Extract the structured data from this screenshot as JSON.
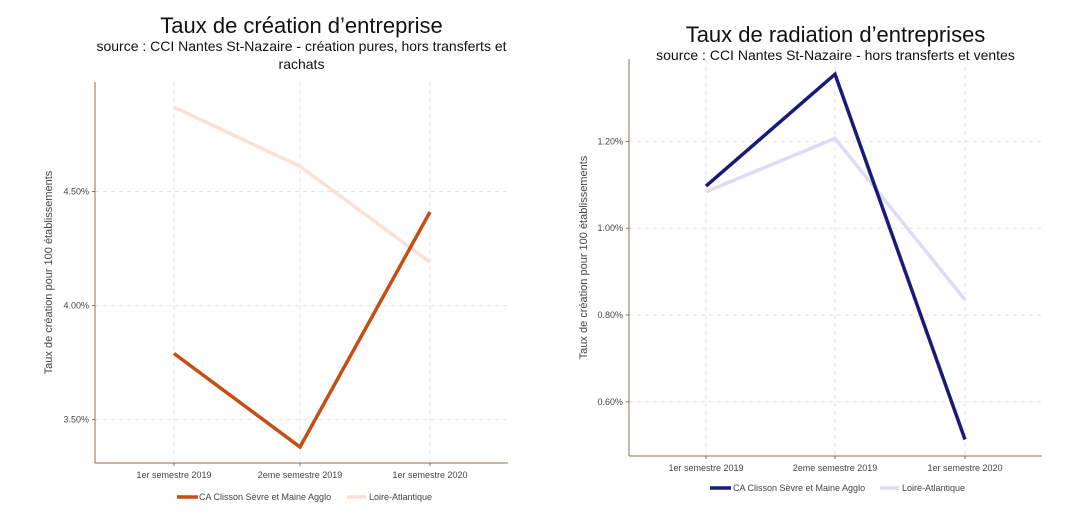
{
  "chart_data": [
    {
      "type": "line",
      "title": "Taux de création d’entreprise",
      "subtitle_lines": [
        "source : CCI Nantes St-Nazaire - création pures, hors transferts et",
        "rachats"
      ],
      "xlabel": "",
      "ylabel": "Taux de création pour 100 établissements",
      "categories": [
        "1er semestre 2019",
        "2eme semestre 2019",
        "1er semestre 2020"
      ],
      "yticks": [
        "3.50%",
        "4.00%",
        "4.50%"
      ],
      "ytick_values": [
        3.5,
        4.0,
        4.5
      ],
      "ylim": [
        3.31,
        4.98
      ],
      "grid": true,
      "legend_position": "bottom",
      "series": [
        {
          "name": "CA Clisson Sèvre et Maine Agglo",
          "values": [
            3.79,
            3.38,
            4.41
          ],
          "color": "#c44e14"
        },
        {
          "name": "Loire-Atlantique",
          "values": [
            4.87,
            4.61,
            4.19
          ],
          "color": "#fbe1d4"
        }
      ]
    },
    {
      "type": "line",
      "title": "Taux de radiation d’entreprises",
      "subtitle_lines": [
        "source : CCI Nantes St-Nazaire - hors transferts et ventes"
      ],
      "xlabel": "",
      "ylabel": "Taux de création pour 100 établissements",
      "categories": [
        "1er semestre 2019",
        "2eme semestre 2019",
        "1er semestre 2020"
      ],
      "yticks": [
        "0.60%",
        "0.80%",
        "1.00%",
        "1.20%"
      ],
      "ytick_values": [
        0.6,
        0.8,
        1.0,
        1.2
      ],
      "ylim": [
        0.475,
        1.39
      ],
      "grid": true,
      "legend_position": "bottom",
      "series": [
        {
          "name": "CA Clisson Sèvre et Maine Agglo",
          "values": [
            1.097,
            1.355,
            0.513
          ],
          "color": "#1a1a7a"
        },
        {
          "name": "Loire-Atlantique",
          "values": [
            1.084,
            1.207,
            0.835
          ],
          "color": "#dcdcf5"
        }
      ]
    }
  ]
}
